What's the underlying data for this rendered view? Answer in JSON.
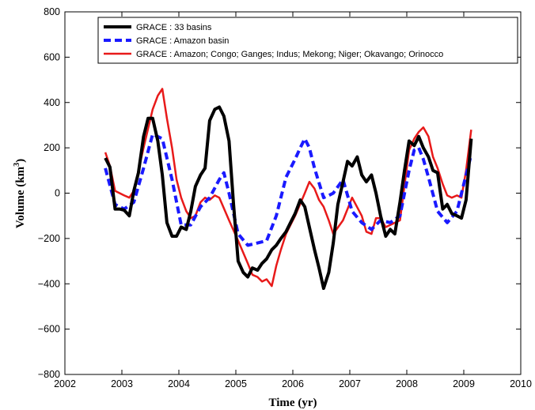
{
  "chart_data": {
    "type": "line",
    "xlabel": "Time (yr)",
    "ylabel_main": "Volume (km",
    "ylabel_sup": "3",
    "ylabel_close": ")",
    "xlim": [
      2002,
      2010
    ],
    "ylim": [
      -800,
      800
    ],
    "xticks": [
      2002,
      2003,
      2004,
      2005,
      2006,
      2007,
      2008,
      2009,
      2010
    ],
    "yticks": [
      -800,
      -600,
      -400,
      -200,
      0,
      200,
      400,
      600,
      800
    ],
    "ytick_labels": [
      "−800",
      "−600",
      "−400",
      "−200",
      "0",
      "200",
      "400",
      "600",
      "800"
    ],
    "grid": false,
    "legend_position": "top",
    "series": [
      {
        "name": "GRACE : 33 basins",
        "color": "#000000",
        "style": "solid",
        "x": [
          2002.71,
          2002.79,
          2002.88,
          2002.96,
          2003.04,
          2003.13,
          2003.21,
          2003.29,
          2003.38,
          2003.46,
          2003.54,
          2003.63,
          2003.71,
          2003.79,
          2003.88,
          2003.96,
          2004.04,
          2004.13,
          2004.21,
          2004.29,
          2004.38,
          2004.46,
          2004.54,
          2004.63,
          2004.71,
          2004.79,
          2004.88,
          2004.96,
          2005.04,
          2005.13,
          2005.21,
          2005.29,
          2005.38,
          2005.46,
          2005.54,
          2005.63,
          2005.71,
          2005.79,
          2005.88,
          2005.96,
          2006.04,
          2006.13,
          2006.21,
          2006.29,
          2006.38,
          2006.46,
          2006.54,
          2006.63,
          2006.71,
          2006.79,
          2006.88,
          2006.96,
          2007.04,
          2007.13,
          2007.21,
          2007.29,
          2007.38,
          2007.46,
          2007.54,
          2007.63,
          2007.71,
          2007.79,
          2007.88,
          2007.96,
          2008.04,
          2008.13,
          2008.21,
          2008.29,
          2008.38,
          2008.46,
          2008.54,
          2008.63,
          2008.71,
          2008.79,
          2008.88,
          2008.96,
          2009.04,
          2009.13
        ],
        "y": [
          155,
          115,
          -70,
          -70,
          -75,
          -100,
          10,
          90,
          250,
          330,
          330,
          230,
          80,
          -130,
          -190,
          -190,
          -150,
          -160,
          -80,
          30,
          80,
          110,
          320,
          370,
          380,
          340,
          230,
          -50,
          -300,
          -350,
          -370,
          -330,
          -340,
          -310,
          -290,
          -250,
          -230,
          -200,
          -170,
          -130,
          -90,
          -30,
          -60,
          -150,
          -250,
          -330,
          -420,
          -350,
          -220,
          -50,
          50,
          140,
          120,
          160,
          80,
          50,
          80,
          0,
          -100,
          -190,
          -160,
          -180,
          -40,
          100,
          230,
          210,
          250,
          200,
          160,
          100,
          90,
          -70,
          -50,
          -90,
          -100,
          -110,
          -30,
          240
        ]
      },
      {
        "name": "GRACE : Amazon basin",
        "color": "#1a1aff",
        "style": "dashed",
        "x": [
          2002.71,
          2002.88,
          2003.04,
          2003.21,
          2003.38,
          2003.54,
          2003.71,
          2003.88,
          2004.04,
          2004.21,
          2004.38,
          2004.54,
          2004.71,
          2004.79,
          2004.88,
          2005.04,
          2005.21,
          2005.38,
          2005.54,
          2005.71,
          2005.88,
          2006.04,
          2006.13,
          2006.21,
          2006.29,
          2006.38,
          2006.54,
          2006.63,
          2006.71,
          2006.88,
          2007.04,
          2007.21,
          2007.38,
          2007.54,
          2007.71,
          2007.88,
          2008.04,
          2008.13,
          2008.21,
          2008.29,
          2008.38,
          2008.54,
          2008.71,
          2008.88,
          2009.04,
          2009.13
        ],
        "y": [
          110,
          -50,
          -70,
          -40,
          110,
          260,
          240,
          60,
          -140,
          -140,
          -60,
          -20,
          60,
          90,
          0,
          -180,
          -230,
          -220,
          -210,
          -100,
          70,
          150,
          200,
          240,
          200,
          110,
          -20,
          -10,
          0,
          60,
          -80,
          -130,
          -160,
          -120,
          -130,
          -100,
          100,
          190,
          200,
          150,
          70,
          -80,
          -130,
          -80,
          80,
          170
        ]
      },
      {
        "name": "GRACE : Amazon; Congo; Ganges; Indus; Mekong; Niger; Okavango; Orinocco",
        "color": "#e81a1a",
        "style": "solid",
        "x": [
          2002.71,
          2002.79,
          2002.88,
          2003.04,
          2003.13,
          2003.21,
          2003.38,
          2003.54,
          2003.63,
          2003.71,
          2003.79,
          2003.88,
          2003.96,
          2004.04,
          2004.13,
          2004.21,
          2004.29,
          2004.38,
          2004.46,
          2004.54,
          2004.63,
          2004.71,
          2004.88,
          2005.04,
          2005.21,
          2005.29,
          2005.38,
          2005.46,
          2005.54,
          2005.63,
          2005.71,
          2005.79,
          2005.88,
          2006.04,
          2006.21,
          2006.29,
          2006.38,
          2006.46,
          2006.54,
          2006.63,
          2006.71,
          2006.88,
          2007.04,
          2007.21,
          2007.29,
          2007.38,
          2007.46,
          2007.54,
          2007.63,
          2007.71,
          2007.88,
          2008.04,
          2008.13,
          2008.21,
          2008.29,
          2008.38,
          2008.46,
          2008.54,
          2008.63,
          2008.71,
          2008.79,
          2008.88,
          2008.96,
          2009.04,
          2009.13
        ],
        "y": [
          180,
          120,
          10,
          -10,
          -20,
          10,
          200,
          370,
          430,
          460,
          330,
          200,
          60,
          -20,
          -80,
          -110,
          -100,
          -40,
          -20,
          -30,
          -10,
          -20,
          -120,
          -210,
          -310,
          -360,
          -370,
          -390,
          -380,
          -410,
          -320,
          -250,
          -180,
          -100,
          0,
          50,
          20,
          -30,
          -60,
          -120,
          -180,
          -120,
          -20,
          -100,
          -170,
          -180,
          -110,
          -110,
          -150,
          -140,
          -120,
          190,
          240,
          270,
          290,
          250,
          160,
          110,
          40,
          -10,
          -20,
          -10,
          -20,
          100,
          280
        ]
      }
    ]
  }
}
